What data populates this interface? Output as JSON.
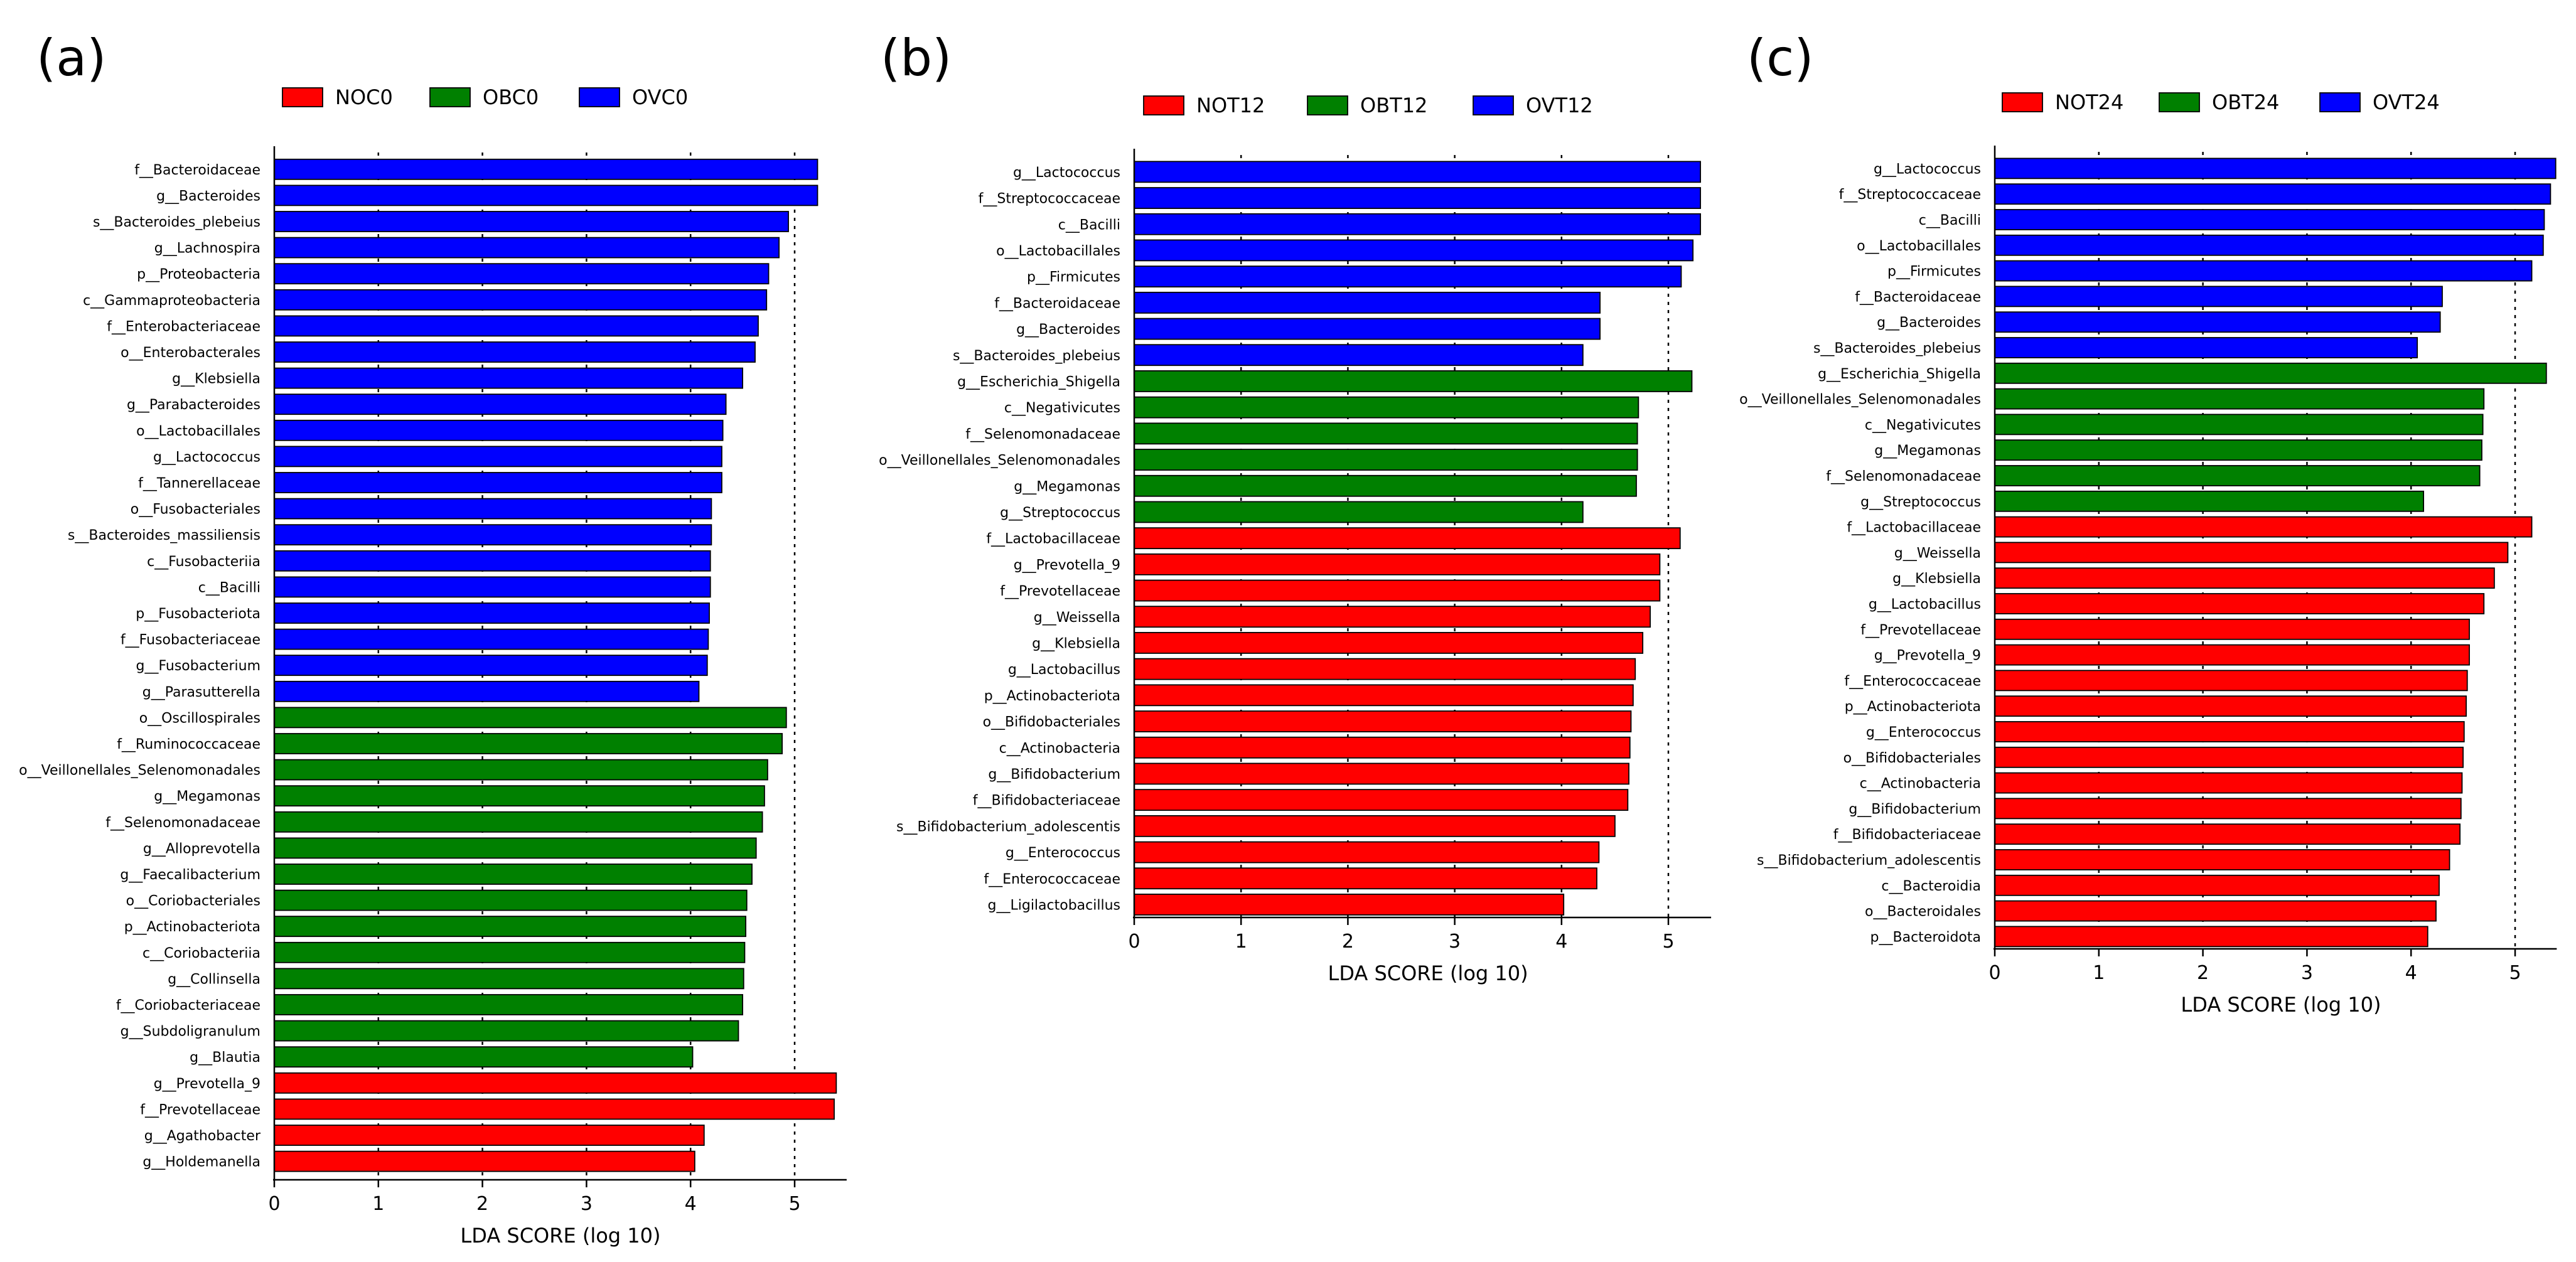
{
  "colors": {
    "N": "#ff0000",
    "OB": "#008000",
    "OV": "#0000ff"
  },
  "chart_data": [
    {
      "type": "bar",
      "orientation": "horizontal",
      "panel_label": "(a)",
      "xlabel": "LDA SCORE (log 10)",
      "xlim": [
        0,
        5.5
      ],
      "xticks": [
        "0",
        "1",
        "2",
        "3",
        "4",
        "5"
      ],
      "grid": "x-dotted",
      "legend": [
        {
          "label": "NOC0",
          "group": "N"
        },
        {
          "label": "OBC0",
          "group": "OB"
        },
        {
          "label": "OVC0",
          "group": "OV"
        }
      ],
      "bars": [
        {
          "label": "f__Bacteroidaceae",
          "value": 5.22,
          "group": "OV"
        },
        {
          "label": "g__Bacteroides",
          "value": 5.22,
          "group": "OV"
        },
        {
          "label": "s__Bacteroides_plebeius",
          "value": 4.94,
          "group": "OV"
        },
        {
          "label": "g__Lachnospira",
          "value": 4.85,
          "group": "OV"
        },
        {
          "label": "p__Proteobacteria",
          "value": 4.75,
          "group": "OV"
        },
        {
          "label": "c__Gammaproteobacteria",
          "value": 4.73,
          "group": "OV"
        },
        {
          "label": "f__Enterobacteriaceae",
          "value": 4.65,
          "group": "OV"
        },
        {
          "label": "o__Enterobacterales",
          "value": 4.62,
          "group": "OV"
        },
        {
          "label": "g__Klebsiella",
          "value": 4.5,
          "group": "OV"
        },
        {
          "label": "g__Parabacteroides",
          "value": 4.34,
          "group": "OV"
        },
        {
          "label": "o__Lactobacillales",
          "value": 4.31,
          "group": "OV"
        },
        {
          "label": "g__Lactococcus",
          "value": 4.3,
          "group": "OV"
        },
        {
          "label": "f__Tannerellaceae",
          "value": 4.3,
          "group": "OV"
        },
        {
          "label": "o__Fusobacteriales",
          "value": 4.2,
          "group": "OV"
        },
        {
          "label": "s__Bacteroides_massiliensis",
          "value": 4.2,
          "group": "OV"
        },
        {
          "label": "c__Fusobacteriia",
          "value": 4.19,
          "group": "OV"
        },
        {
          "label": "c__Bacilli",
          "value": 4.19,
          "group": "OV"
        },
        {
          "label": "p__Fusobacteriota",
          "value": 4.18,
          "group": "OV"
        },
        {
          "label": "f__Fusobacteriaceae",
          "value": 4.17,
          "group": "OV"
        },
        {
          "label": "g__Fusobacterium",
          "value": 4.16,
          "group": "OV"
        },
        {
          "label": "g__Parasutterella",
          "value": 4.08,
          "group": "OV"
        },
        {
          "label": "o__Oscillospirales",
          "value": 4.92,
          "group": "OB"
        },
        {
          "label": "f__Ruminococcaceae",
          "value": 4.88,
          "group": "OB"
        },
        {
          "label": "o__Veillonellales_Selenomonadales",
          "value": 4.74,
          "group": "OB"
        },
        {
          "label": "g__Megamonas",
          "value": 4.71,
          "group": "OB"
        },
        {
          "label": "f__Selenomonadaceae",
          "value": 4.69,
          "group": "OB"
        },
        {
          "label": "g__Alloprevotella",
          "value": 4.63,
          "group": "OB"
        },
        {
          "label": "g__Faecalibacterium",
          "value": 4.59,
          "group": "OB"
        },
        {
          "label": "o__Coriobacteriales",
          "value": 4.54,
          "group": "OB"
        },
        {
          "label": "p__Actinobacteriota",
          "value": 4.53,
          "group": "OB"
        },
        {
          "label": "c__Coriobacteriia",
          "value": 4.52,
          "group": "OB"
        },
        {
          "label": "g__Collinsella",
          "value": 4.51,
          "group": "OB"
        },
        {
          "label": "f__Coriobacteriaceae",
          "value": 4.5,
          "group": "OB"
        },
        {
          "label": "g__Subdoligranulum",
          "value": 4.46,
          "group": "OB"
        },
        {
          "label": "g__Blautia",
          "value": 4.02,
          "group": "OB"
        },
        {
          "label": "g__Prevotella_9",
          "value": 5.4,
          "group": "N"
        },
        {
          "label": "f__Prevotellaceae",
          "value": 5.38,
          "group": "N"
        },
        {
          "label": "g__Agathobacter",
          "value": 4.13,
          "group": "N"
        },
        {
          "label": "g__Holdemanella",
          "value": 4.04,
          "group": "N"
        }
      ]
    },
    {
      "type": "bar",
      "orientation": "horizontal",
      "panel_label": "(b)",
      "xlabel": "LDA SCORE (log 10)",
      "xlim": [
        0,
        5.4
      ],
      "xticks": [
        "0",
        "1",
        "2",
        "3",
        "4",
        "5"
      ],
      "grid": "x-dotted",
      "legend": [
        {
          "label": "NOT12",
          "group": "N"
        },
        {
          "label": "OBT12",
          "group": "OB"
        },
        {
          "label": "OVT12",
          "group": "OV"
        }
      ],
      "bars": [
        {
          "label": "g__Lactococcus",
          "value": 5.3,
          "group": "OV"
        },
        {
          "label": "f__Streptococcaceae",
          "value": 5.3,
          "group": "OV"
        },
        {
          "label": "c__Bacilli",
          "value": 5.3,
          "group": "OV"
        },
        {
          "label": "o__Lactobacillales",
          "value": 5.23,
          "group": "OV"
        },
        {
          "label": "p__Firmicutes",
          "value": 5.12,
          "group": "OV"
        },
        {
          "label": "f__Bacteroidaceae",
          "value": 4.36,
          "group": "OV"
        },
        {
          "label": "g__Bacteroides",
          "value": 4.36,
          "group": "OV"
        },
        {
          "label": "s__Bacteroides_plebeius",
          "value": 4.2,
          "group": "OV"
        },
        {
          "label": "g__Escherichia_Shigella",
          "value": 5.22,
          "group": "OB"
        },
        {
          "label": "c__Negativicutes",
          "value": 4.72,
          "group": "OB"
        },
        {
          "label": "f__Selenomonadaceae",
          "value": 4.71,
          "group": "OB"
        },
        {
          "label": "o__Veillonellales_Selenomonadales",
          "value": 4.71,
          "group": "OB"
        },
        {
          "label": "g__Megamonas",
          "value": 4.7,
          "group": "OB"
        },
        {
          "label": "g__Streptococcus",
          "value": 4.2,
          "group": "OB"
        },
        {
          "label": "f__Lactobacillaceae",
          "value": 5.11,
          "group": "N"
        },
        {
          "label": "g__Prevotella_9",
          "value": 4.92,
          "group": "N"
        },
        {
          "label": "f__Prevotellaceae",
          "value": 4.92,
          "group": "N"
        },
        {
          "label": "g__Weissella",
          "value": 4.83,
          "group": "N"
        },
        {
          "label": "g__Klebsiella",
          "value": 4.76,
          "group": "N"
        },
        {
          "label": "g__Lactobacillus",
          "value": 4.69,
          "group": "N"
        },
        {
          "label": "p__Actinobacteriota",
          "value": 4.67,
          "group": "N"
        },
        {
          "label": "o__Bifidobacteriales",
          "value": 4.65,
          "group": "N"
        },
        {
          "label": "c__Actinobacteria",
          "value": 4.64,
          "group": "N"
        },
        {
          "label": "g__Bifidobacterium",
          "value": 4.63,
          "group": "N"
        },
        {
          "label": "f__Bifidobacteriaceae",
          "value": 4.62,
          "group": "N"
        },
        {
          "label": "s__Bifidobacterium_adolescentis",
          "value": 4.5,
          "group": "N"
        },
        {
          "label": "g__Enterococcus",
          "value": 4.35,
          "group": "N"
        },
        {
          "label": "f__Enterococcaceae",
          "value": 4.33,
          "group": "N"
        },
        {
          "label": "g__Ligilactobacillus",
          "value": 4.02,
          "group": "N"
        }
      ]
    },
    {
      "type": "bar",
      "orientation": "horizontal",
      "panel_label": "(c)",
      "xlabel": "LDA SCORE (log 10)",
      "xlim": [
        0,
        5.4
      ],
      "xticks": [
        "0",
        "1",
        "2",
        "3",
        "4",
        "5"
      ],
      "grid": "x-dotted",
      "legend": [
        {
          "label": "NOT24",
          "group": "N"
        },
        {
          "label": "OBT24",
          "group": "OB"
        },
        {
          "label": "OVT24",
          "group": "OV"
        }
      ],
      "bars": [
        {
          "label": "g__Lactococcus",
          "value": 5.39,
          "group": "OV"
        },
        {
          "label": "f__Streptococcaceae",
          "value": 5.34,
          "group": "OV"
        },
        {
          "label": "c__Bacilli",
          "value": 5.28,
          "group": "OV"
        },
        {
          "label": "o__Lactobacillales",
          "value": 5.27,
          "group": "OV"
        },
        {
          "label": "p__Firmicutes",
          "value": 5.16,
          "group": "OV"
        },
        {
          "label": "f__Bacteroidaceae",
          "value": 4.3,
          "group": "OV"
        },
        {
          "label": "g__Bacteroides",
          "value": 4.28,
          "group": "OV"
        },
        {
          "label": "s__Bacteroides_plebeius",
          "value": 4.06,
          "group": "OV"
        },
        {
          "label": "g__Escherichia_Shigella",
          "value": 5.3,
          "group": "OB"
        },
        {
          "label": "o__Veillonellales_Selenomonadales",
          "value": 4.7,
          "group": "OB"
        },
        {
          "label": "c__Negativicutes",
          "value": 4.69,
          "group": "OB"
        },
        {
          "label": "g__Megamonas",
          "value": 4.68,
          "group": "OB"
        },
        {
          "label": "f__Selenomonadaceae",
          "value": 4.66,
          "group": "OB"
        },
        {
          "label": "g__Streptococcus",
          "value": 4.12,
          "group": "OB"
        },
        {
          "label": "f__Lactobacillaceae",
          "value": 5.16,
          "group": "N"
        },
        {
          "label": "g__Weissella",
          "value": 4.93,
          "group": "N"
        },
        {
          "label": "g__Klebsiella",
          "value": 4.8,
          "group": "N"
        },
        {
          "label": "g__Lactobacillus",
          "value": 4.7,
          "group": "N"
        },
        {
          "label": "f__Prevotellaceae",
          "value": 4.56,
          "group": "N"
        },
        {
          "label": "g__Prevotella_9",
          "value": 4.56,
          "group": "N"
        },
        {
          "label": "f__Enterococcaceae",
          "value": 4.54,
          "group": "N"
        },
        {
          "label": "p__Actinobacteriota",
          "value": 4.53,
          "group": "N"
        },
        {
          "label": "g__Enterococcus",
          "value": 4.51,
          "group": "N"
        },
        {
          "label": "o__Bifidobacteriales",
          "value": 4.5,
          "group": "N"
        },
        {
          "label": "c__Actinobacteria",
          "value": 4.49,
          "group": "N"
        },
        {
          "label": "g__Bifidobacterium",
          "value": 4.48,
          "group": "N"
        },
        {
          "label": "f__Bifidobacteriaceae",
          "value": 4.47,
          "group": "N"
        },
        {
          "label": "s__Bifidobacterium_adolescentis",
          "value": 4.37,
          "group": "N"
        },
        {
          "label": "c__Bacteroidia",
          "value": 4.27,
          "group": "N"
        },
        {
          "label": "o__Bacteroidales",
          "value": 4.24,
          "group": "N"
        },
        {
          "label": "p__Bacteroidota",
          "value": 4.16,
          "group": "N"
        }
      ]
    }
  ]
}
